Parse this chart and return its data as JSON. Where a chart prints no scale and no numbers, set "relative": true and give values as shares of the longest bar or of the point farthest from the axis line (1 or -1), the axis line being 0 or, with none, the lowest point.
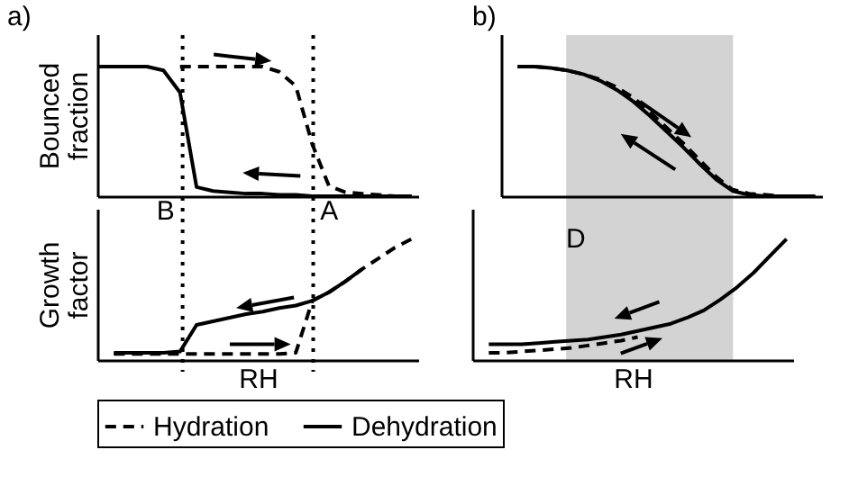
{
  "chart_data": [
    {
      "type": "line",
      "title": "a)",
      "ylabel": "Bounced fraction",
      "relative": true,
      "tick_labels": false,
      "legend": "bottom",
      "annotations": [
        "B",
        "A"
      ],
      "categories": [
        null,
        null,
        null,
        null,
        null,
        null,
        null,
        null,
        null,
        null,
        null,
        null,
        null,
        null,
        null,
        null,
        null,
        null,
        null,
        null
      ],
      "series": [
        {
          "name": "Hydration",
          "color": "#000000",
          "line_style": "dashed",
          "values": [
            null,
            null,
            null,
            null,
            null,
            1,
            1,
            1,
            1,
            1,
            1,
            0.96,
            0.85,
            0.4,
            0.08,
            0.03,
            0.02,
            0.01,
            0,
            0
          ]
        },
        {
          "name": "Dehydration",
          "color": "#000000",
          "line_style": "solid",
          "values": [
            1,
            1,
            1,
            1,
            0.97,
            0.8,
            0.07,
            0.04,
            0.03,
            0.02,
            0.02,
            0.01,
            0.01,
            0,
            0,
            0,
            0,
            0,
            0,
            0
          ]
        }
      ]
    },
    {
      "type": "line",
      "title": "b)",
      "relative": true,
      "tick_labels": false,
      "categories": [
        null,
        null,
        null,
        null,
        null,
        null,
        null,
        null,
        null,
        null,
        null,
        null,
        null,
        null,
        null,
        null,
        null,
        null,
        null,
        null
      ],
      "series": [
        {
          "color": "#000000",
          "line_style": "dashed",
          "values": [
            null,
            1,
            1,
            0.99,
            0.97,
            0.94,
            0.9,
            0.84,
            0.76,
            0.65,
            0.53,
            0.41,
            0.28,
            0.15,
            0.05,
            0.02,
            0.01,
            0,
            0,
            null
          ]
        },
        {
          "color": "#000000",
          "line_style": "solid",
          "values": [
            null,
            1,
            1,
            0.99,
            0.97,
            0.94,
            0.89,
            0.82,
            0.73,
            0.62,
            0.5,
            0.38,
            0.25,
            0.13,
            0.04,
            0.01,
            0,
            0,
            0,
            0
          ]
        }
      ]
    },
    {
      "type": "line",
      "ylabel": "Growth factor",
      "xlabel": "RH",
      "relative": true,
      "tick_labels": false,
      "categories": [
        null,
        null,
        null,
        null,
        null,
        null,
        null,
        null,
        null,
        null,
        null,
        null,
        null,
        null,
        null,
        null,
        null,
        null,
        null,
        null
      ],
      "series": [
        {
          "color": "#000000",
          "line_style": "dashed",
          "values": [
            null,
            0.05,
            0.05,
            0.05,
            0.05,
            0.05,
            0.05,
            0.05,
            0.05,
            0.05,
            0.05,
            0.05,
            0.06,
            0.49,
            0.56,
            0.65,
            0.75,
            0.84,
            0.93,
            1
          ]
        },
        {
          "color": "#000000",
          "line_style": "solid",
          "values": [
            null,
            0.06,
            0.06,
            0.06,
            0.06,
            0.07,
            0.29,
            0.32,
            0.35,
            0.38,
            0.4,
            0.43,
            0.45,
            0.49,
            0.56,
            0.65,
            0.75,
            null,
            null,
            null
          ]
        }
      ]
    },
    {
      "type": "line",
      "xlabel": "RH",
      "relative": true,
      "tick_labels": false,
      "annotations": [
        "D"
      ],
      "categories": [
        null,
        null,
        null,
        null,
        null,
        null,
        null,
        null,
        null,
        null,
        null,
        null,
        null,
        null,
        null,
        null,
        null,
        null,
        null,
        null
      ],
      "series": [
        {
          "color": "#000000",
          "line_style": "dashed",
          "values": [
            null,
            0.06,
            0.06,
            0.07,
            0.08,
            0.09,
            0.1,
            0.12,
            0.14,
            0.16,
            0.19,
            null,
            null,
            null,
            null,
            null,
            null,
            null,
            null,
            null
          ]
        },
        {
          "color": "#000000",
          "line_style": "solid",
          "values": [
            null,
            0.13,
            0.13,
            0.13,
            0.14,
            0.15,
            0.16,
            0.17,
            0.19,
            0.21,
            0.24,
            0.27,
            0.3,
            0.35,
            0.41,
            0.5,
            0.6,
            0.72,
            0.86,
            1
          ]
        }
      ]
    }
  ]
}
